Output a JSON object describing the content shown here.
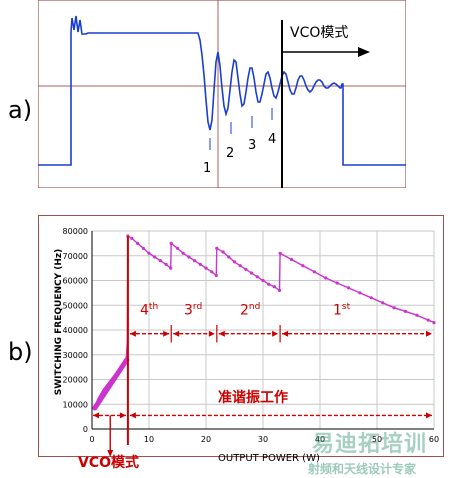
{
  "panel_a": {
    "label": "a)",
    "mode_text": "VCO模式",
    "valley_labels": [
      "1",
      "2",
      "3",
      "4"
    ]
  },
  "panel_b": {
    "label": "b)",
    "ylabel": "SWITCHING FREQUENCY (Hz)",
    "xlabel": "OUTPUT POWER (W)",
    "vco_label": "VCO模式",
    "qr_label": "准谐振工作",
    "order_labels": [
      {
        "base": "4",
        "sup": "th"
      },
      {
        "base": "3",
        "sup": "rd"
      },
      {
        "base": "2",
        "sup": "nd"
      },
      {
        "base": "1",
        "sup": "st"
      }
    ],
    "colors": {
      "curve": "#cc33cc",
      "marker": "#cc0000",
      "label": "#cc0000",
      "axes": "#000000",
      "frame": "#a05050"
    }
  },
  "watermark": {
    "line1": "易迪拓培训",
    "line2": "射频和天线设计专家"
  },
  "chart_data": {
    "type": "line",
    "title": "",
    "xlabel": "OUTPUT POWER (W)",
    "ylabel": "SWITCHING FREQUENCY (Hz)",
    "xlim": [
      0,
      60
    ],
    "ylim": [
      0,
      80000
    ],
    "x_ticks": [
      0,
      10,
      20,
      30,
      40,
      50,
      60
    ],
    "y_ticks": [
      0,
      10000,
      20000,
      30000,
      40000,
      50000,
      60000,
      70000,
      80000
    ],
    "y_tick_labels": [
      "0",
      "10000",
      "20000",
      "30000",
      "40000",
      "50000",
      "60000",
      "70000",
      "80000"
    ],
    "grid": true,
    "series": [
      {
        "values": [
          [
            0.5,
            9000
          ],
          [
            1,
            12000
          ],
          [
            2,
            16000
          ],
          [
            3,
            19000
          ],
          [
            4,
            22000
          ],
          [
            5,
            25000
          ],
          [
            5.5,
            26500
          ],
          [
            6,
            28500
          ],
          [
            6.2,
            35000
          ],
          [
            6.3,
            78000
          ],
          [
            7,
            77000
          ],
          [
            8,
            75000
          ],
          [
            9,
            73000
          ],
          [
            10,
            71000
          ],
          [
            11,
            69500
          ],
          [
            12,
            68000
          ],
          [
            13,
            66500
          ],
          [
            13.8,
            65000
          ],
          [
            13.9,
            75000
          ],
          [
            15,
            73000
          ],
          [
            16,
            71000
          ],
          [
            17,
            69500
          ],
          [
            18,
            68000
          ],
          [
            19,
            66500
          ],
          [
            20,
            65000
          ],
          [
            21,
            63500
          ],
          [
            21.8,
            62000
          ],
          [
            21.9,
            73000
          ],
          [
            23,
            71500
          ],
          [
            24,
            69500
          ],
          [
            25,
            67500
          ],
          [
            26,
            66000
          ],
          [
            27,
            64500
          ],
          [
            28,
            63000
          ],
          [
            29,
            61500
          ],
          [
            30,
            60000
          ],
          [
            31,
            58500
          ],
          [
            32,
            57500
          ],
          [
            32.9,
            56000
          ],
          [
            33,
            71000
          ],
          [
            35,
            68500
          ],
          [
            37,
            66000
          ],
          [
            39,
            63500
          ],
          [
            41,
            61000
          ],
          [
            43,
            59000
          ],
          [
            45,
            57000
          ],
          [
            47,
            55000
          ],
          [
            49,
            53000
          ],
          [
            51,
            51000
          ],
          [
            53,
            49000
          ],
          [
            55,
            47500
          ],
          [
            57,
            46000
          ],
          [
            59,
            44000
          ],
          [
            60,
            43000
          ]
        ]
      }
    ]
  }
}
